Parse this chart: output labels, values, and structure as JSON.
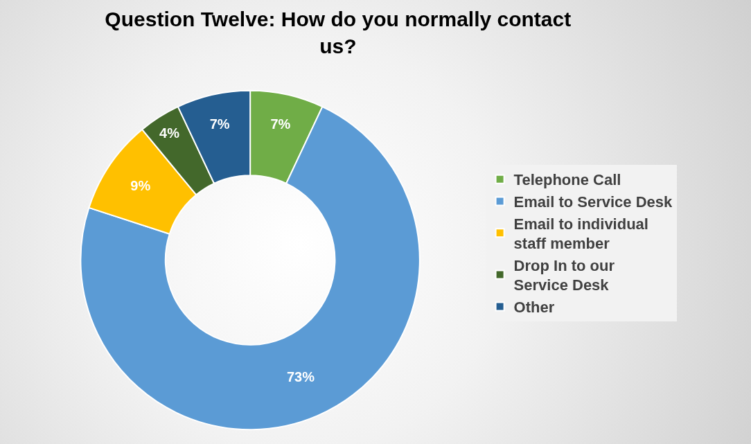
{
  "chart_data": {
    "type": "donut",
    "title": "Question Twelve: How do you normally contact us?",
    "categories": [
      "Telephone Call",
      "Email to Service Desk",
      "Email to individual staff member",
      "Drop In to our Service Desk",
      "Other"
    ],
    "values": [
      7,
      73,
      9,
      4,
      7
    ],
    "colors": [
      "#70ad47",
      "#5b9bd5",
      "#ffc000",
      "#43682b",
      "#255e91"
    ],
    "value_labels": [
      "7%",
      "73%",
      "9%",
      "4%",
      "7%"
    ],
    "legend": "right"
  }
}
